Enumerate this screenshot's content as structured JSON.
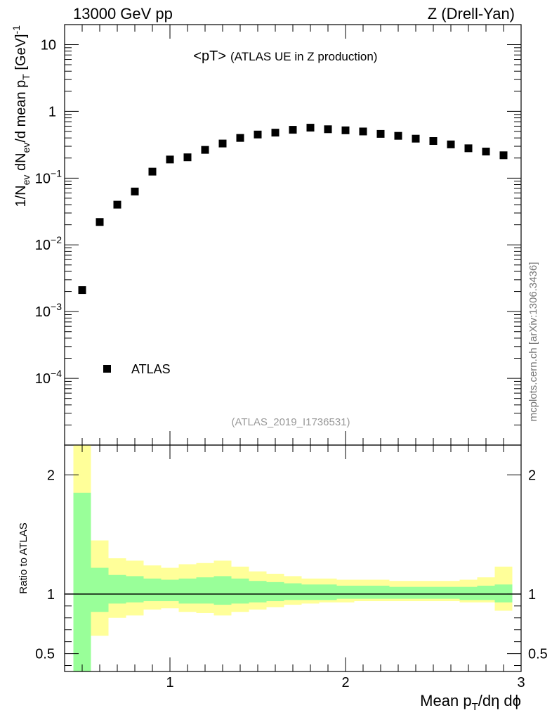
{
  "header": {
    "left": "13000 GeV pp",
    "right": "Z (Drell-Yan)"
  },
  "side_label": "mcplots.cern.ch [arXiv:1306.3436]",
  "chart_data": [
    {
      "type": "scatter",
      "title": "<pT>",
      "subtitle": "(ATLAS UE in Z production)",
      "analysis_id": "(ATLAS_2019_I1736531)",
      "ylabel": {
        "main": "1/N",
        "sub1": "ev",
        "mid": " dN",
        "sub2": "ev",
        "mid2": "/d mean p",
        "sub3": "T",
        "tail": " [GeV]",
        "sup": "-1"
      },
      "yscale": "log",
      "xlim": [
        0.4,
        3.0
      ],
      "ylim_log10": [
        -5,
        1.3
      ],
      "y_ticks": [
        {
          "exp": -4,
          "label": "10",
          "sup": "−4"
        },
        {
          "exp": -3,
          "label": "10",
          "sup": "−3"
        },
        {
          "exp": -2,
          "label": "10",
          "sup": "−2"
        },
        {
          "exp": -1,
          "label": "10",
          "sup": "−1"
        },
        {
          "exp": 0,
          "label": "1",
          "sup": ""
        },
        {
          "exp": 1,
          "label": "10",
          "sup": ""
        }
      ],
      "legend": {
        "entries": [
          "ATLAS"
        ],
        "position": "bottom-left"
      },
      "series": [
        {
          "name": "ATLAS",
          "x": [
            0.5,
            0.6,
            0.7,
            0.8,
            0.9,
            1.0,
            1.1,
            1.2,
            1.3,
            1.4,
            1.5,
            1.6,
            1.7,
            1.8,
            1.9,
            2.0,
            2.1,
            2.2,
            2.3,
            2.4,
            2.5,
            2.6,
            2.7,
            2.8,
            2.9
          ],
          "y": [
            0.0021,
            0.022,
            0.04,
            0.063,
            0.125,
            0.19,
            0.205,
            0.265,
            0.33,
            0.4,
            0.45,
            0.48,
            0.53,
            0.57,
            0.54,
            0.52,
            0.5,
            0.46,
            0.43,
            0.39,
            0.36,
            0.32,
            0.28,
            0.25,
            0.22
          ]
        }
      ]
    },
    {
      "type": "area",
      "ylabel": "Ratio to ATLAS",
      "xlabel": "Mean p_T/dη dφ",
      "xlabel_parts": {
        "a": "Mean p",
        "sub": "T",
        "b": "/dη dϕ"
      },
      "xlim": [
        0.4,
        3.0
      ],
      "ylim": [
        0.35,
        2.25
      ],
      "y_ticks": [
        0.5,
        1,
        2
      ],
      "x_ticks": [
        1,
        2,
        3
      ],
      "reference_line": 1,
      "bands": {
        "edges": [
          0.45,
          0.55,
          0.65,
          0.75,
          0.85,
          0.95,
          1.05,
          1.15,
          1.25,
          1.35,
          1.45,
          1.55,
          1.65,
          1.75,
          1.85,
          1.95,
          2.05,
          2.15,
          2.25,
          2.35,
          2.45,
          2.55,
          2.65,
          2.75,
          2.85,
          2.95
        ],
        "inner_color": "#99ff99",
        "outer_color": "#ffff99",
        "inner_lo": [
          0.35,
          0.85,
          0.92,
          0.93,
          0.94,
          0.94,
          0.92,
          0.92,
          0.91,
          0.92,
          0.93,
          0.94,
          0.95,
          0.95,
          0.95,
          0.96,
          0.96,
          0.96,
          0.96,
          0.96,
          0.96,
          0.96,
          0.95,
          0.95,
          0.93
        ],
        "inner_hi": [
          1.85,
          1.22,
          1.16,
          1.15,
          1.13,
          1.12,
          1.13,
          1.14,
          1.15,
          1.13,
          1.11,
          1.1,
          1.09,
          1.08,
          1.08,
          1.07,
          1.07,
          1.07,
          1.06,
          1.06,
          1.06,
          1.06,
          1.06,
          1.07,
          1.08
        ],
        "outer_lo": [
          0.35,
          0.65,
          0.8,
          0.82,
          0.87,
          0.88,
          0.85,
          0.84,
          0.82,
          0.85,
          0.87,
          0.89,
          0.91,
          0.92,
          0.93,
          0.93,
          0.94,
          0.94,
          0.94,
          0.94,
          0.94,
          0.94,
          0.93,
          0.93,
          0.86
        ],
        "outer_hi": [
          2.25,
          1.45,
          1.3,
          1.28,
          1.24,
          1.22,
          1.25,
          1.26,
          1.28,
          1.23,
          1.19,
          1.17,
          1.15,
          1.13,
          1.13,
          1.12,
          1.12,
          1.12,
          1.11,
          1.11,
          1.11,
          1.11,
          1.12,
          1.14,
          1.23
        ]
      }
    }
  ]
}
